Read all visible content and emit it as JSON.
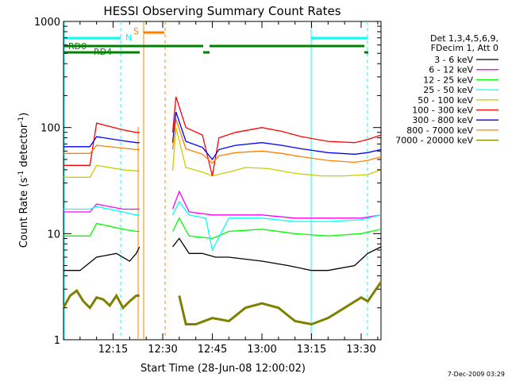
{
  "chart_data": {
    "type": "line",
    "title": "HESSI Observing Summary Count Rates",
    "xlabel": "Start Time (28-Jun-08 12:00:02)",
    "ylabel_main": "Count Rate (s",
    "ylabel_sup1": "-1",
    "ylabel_mid": " detector",
    "ylabel_sup2": "-1",
    "ylabel_end": ")",
    "yscale": "log",
    "ylim": [
      1,
      1000
    ],
    "xlim_minutes": [
      0,
      96
    ],
    "x_ticks": [
      {
        "t": 15,
        "label": "12:15"
      },
      {
        "t": 30,
        "label": "12:30"
      },
      {
        "t": 45,
        "label": "12:45"
      },
      {
        "t": 60,
        "label": "13:00"
      },
      {
        "t": 75,
        "label": "13:15"
      },
      {
        "t": 90,
        "label": "13:30"
      }
    ],
    "y_ticks": [
      {
        "v": 1,
        "label": "1"
      },
      {
        "v": 10,
        "label": "10"
      },
      {
        "v": 100,
        "label": "100"
      },
      {
        "v": 1000,
        "label": "1000"
      }
    ],
    "legend_header": [
      "Det 1,3,4,5,6,9,",
      "FDecim 1, Att 0"
    ],
    "legend_placement": "right",
    "series": [
      {
        "name": "3 - 6 keV",
        "color": "#000000",
        "x": [
          0,
          5,
          10,
          16,
          20,
          22,
          23,
          33,
          35,
          38,
          42,
          46,
          50,
          60,
          68,
          75,
          80,
          88,
          92,
          96
        ],
        "y": [
          4.5,
          4.5,
          6,
          6.5,
          5.5,
          6.5,
          7.5,
          7.5,
          9,
          6.5,
          6.5,
          6,
          6,
          5.5,
          5,
          4.5,
          4.5,
          5,
          6.5,
          7.5
        ]
      },
      {
        "name": "6 - 12 keV",
        "color": "#ff00ff",
        "x": [
          0,
          8,
          10,
          18,
          22,
          23,
          33,
          35,
          38,
          45,
          50,
          60,
          70,
          80,
          90,
          96
        ],
        "y": [
          16,
          16,
          19,
          17,
          17,
          17,
          17,
          25,
          16,
          15,
          15,
          15,
          14,
          14,
          14,
          15
        ]
      },
      {
        "name": "12 - 25 keV",
        "color": "#00ff00",
        "x": [
          0,
          8,
          10,
          18,
          22,
          23,
          33,
          35,
          38,
          45,
          50,
          60,
          70,
          80,
          90,
          96
        ],
        "y": [
          9.5,
          9.5,
          12.5,
          11,
          10.5,
          10.5,
          10.5,
          14,
          9.5,
          9,
          10.5,
          11,
          10,
          9.5,
          10,
          11
        ]
      },
      {
        "name": "25 - 50 keV",
        "color": "#00ffff",
        "x": [
          0,
          8,
          10,
          18,
          22,
          23,
          33,
          35,
          38,
          43,
          45,
          50,
          60,
          70,
          80,
          90,
          96
        ],
        "y": [
          17,
          17,
          18,
          16,
          15,
          15,
          15,
          20,
          15,
          14,
          7,
          14,
          14,
          13,
          13,
          13.5,
          15
        ]
      },
      {
        "name": "50 - 100 keV",
        "color": "#cccc00",
        "x": [
          0,
          8,
          10,
          18,
          22,
          23,
          33,
          34,
          37,
          42,
          45,
          50,
          55,
          62,
          70,
          78,
          85,
          92,
          96
        ],
        "y": [
          34,
          34,
          44,
          40,
          39,
          39,
          39,
          100,
          42,
          38,
          35,
          38,
          42,
          41,
          37,
          35,
          35,
          36,
          40
        ]
      },
      {
        "name": "100 - 300 keV",
        "color": "#ff0000",
        "x": [
          0,
          8,
          10,
          18,
          22,
          23,
          33,
          34,
          37,
          42,
          45,
          47,
          52,
          60,
          66,
          72,
          80,
          88,
          92,
          96
        ],
        "y": [
          44,
          44,
          110,
          95,
          90,
          90,
          90,
          195,
          100,
          85,
          35,
          80,
          90,
          100,
          92,
          82,
          74,
          72,
          77,
          85
        ]
      },
      {
        "name": "300 - 800 keV",
        "color": "#0000ff",
        "x": [
          0,
          8,
          10,
          18,
          22,
          23,
          33,
          34,
          37,
          42,
          45,
          47,
          52,
          60,
          66,
          72,
          80,
          88,
          92,
          96
        ],
        "y": [
          66,
          66,
          82,
          75,
          72,
          72,
          72,
          140,
          74,
          65,
          50,
          62,
          68,
          72,
          68,
          63,
          58,
          56,
          58,
          62
        ]
      },
      {
        "name": "800 - 7000 keV",
        "color": "#ff8000",
        "x": [
          0,
          8,
          10,
          18,
          22,
          23,
          33,
          34,
          37,
          42,
          45,
          47,
          52,
          60,
          66,
          72,
          80,
          88,
          92,
          96
        ],
        "y": [
          57,
          57,
          68,
          64,
          62,
          62,
          62,
          120,
          63,
          56,
          46,
          54,
          58,
          60,
          57,
          53,
          49,
          47,
          49,
          53
        ]
      },
      {
        "name": "7000 - 20000 keV",
        "color": "#808000",
        "x": [
          0,
          2,
          4,
          6,
          8,
          10,
          12,
          14,
          16,
          18,
          20,
          22,
          23,
          35,
          37,
          40,
          45,
          50,
          55,
          60,
          65,
          70,
          75,
          80,
          85,
          90,
          92,
          96
        ],
        "y": [
          2.0,
          2.6,
          2.9,
          2.3,
          2.0,
          2.5,
          2.4,
          2.1,
          2.6,
          2.0,
          2.3,
          2.6,
          2.6,
          2.6,
          1.4,
          1.4,
          1.6,
          1.5,
          2.0,
          2.2,
          2.0,
          1.5,
          1.4,
          1.6,
          2.0,
          2.5,
          2.3,
          3.5
        ]
      }
    ],
    "attenuator_states": [
      {
        "label": "RD0",
        "color": "#008000",
        "y": 590
      },
      {
        "label": "RD4",
        "color": "#008000",
        "y": 520
      }
    ],
    "flags": [
      {
        "label": "N",
        "color": "#00ffff"
      },
      {
        "label": "S",
        "color": "#ff8000"
      }
    ],
    "footer_date": "7-Dec-2009 03:29"
  }
}
